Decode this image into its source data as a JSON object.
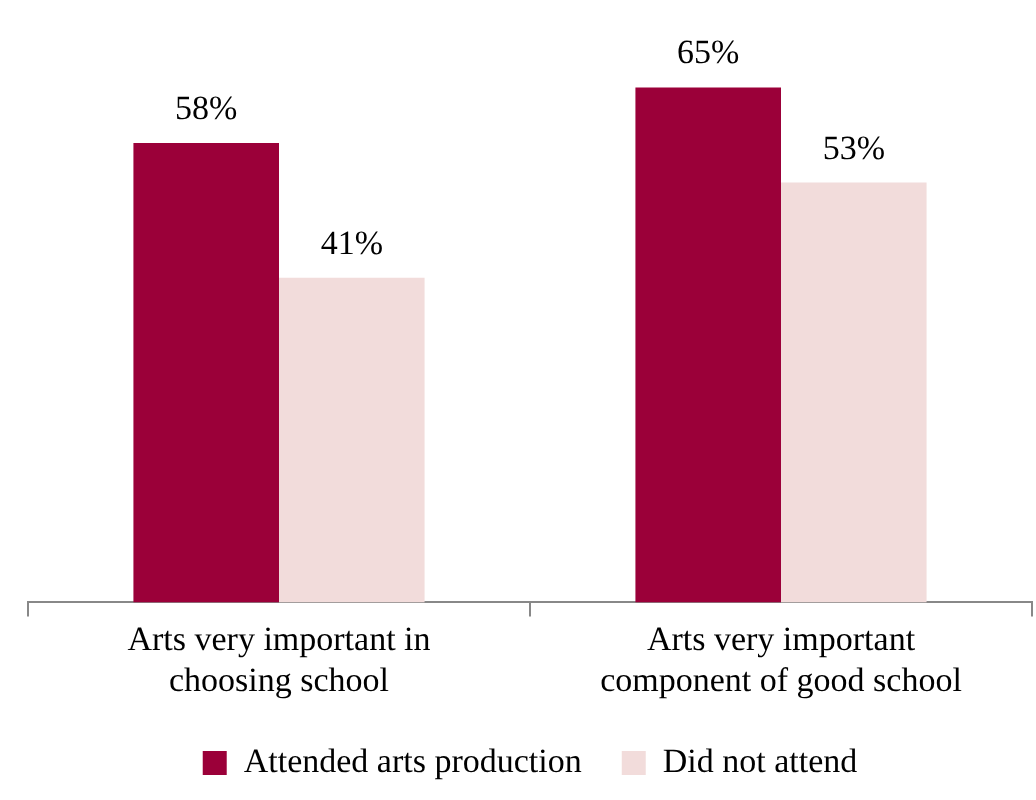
{
  "chart_data": {
    "type": "bar",
    "categories": [
      "Arts very important in choosing school",
      "Arts very important component of good school"
    ],
    "series": [
      {
        "name": "Attended arts production",
        "color": "#9b0039",
        "values": [
          58,
          65
        ],
        "value_labels": [
          "58%",
          "65%"
        ]
      },
      {
        "name": "Did not attend",
        "color": "#f2dcdb",
        "values": [
          41,
          53
        ],
        "value_labels": [
          "41%",
          "53%"
        ]
      }
    ],
    "legend": "bottom",
    "grid": false
  }
}
